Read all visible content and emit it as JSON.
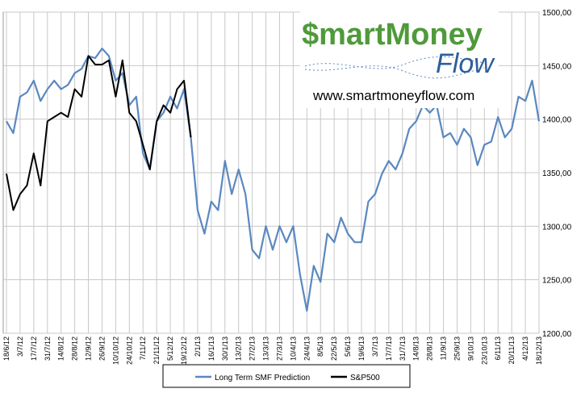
{
  "chart_data": {
    "type": "line",
    "annotations": [
      "$martMoney",
      "Flow",
      "www.smartmoneyflow.com"
    ],
    "categories": [
      "18/6/12",
      null,
      "3/7/12",
      null,
      "17/7/12",
      null,
      "31/7/12",
      null,
      "14/8/12",
      null,
      "28/8/12",
      null,
      "12/9/12",
      null,
      "26/9/12",
      null,
      "10/10/12",
      null,
      "24/10/12",
      null,
      "7/11/12",
      null,
      "21/11/12",
      null,
      "5/12/12",
      null,
      "19/12/12",
      null,
      "2/1/13",
      null,
      "16/1/13",
      null,
      "30/1/13",
      null,
      "13/2/13",
      null,
      "27/2/13",
      null,
      "13/3/13",
      null,
      "27/3/13",
      null,
      "10/4/13",
      null,
      "24/4/13",
      null,
      "8/5/13",
      null,
      "22/5/13",
      null,
      "5/6/13",
      null,
      "19/6/13",
      null,
      "3/7/13",
      null,
      "17/7/13",
      null,
      "31/7/13",
      null,
      "14/8/13",
      null,
      "28/8/13",
      null,
      "11/9/13",
      null,
      "25/9/13",
      null,
      "9/10/13",
      null,
      "23/10/13",
      null,
      "6/11/13",
      null,
      "20/11/13",
      null,
      "4/12/13",
      null,
      "18/12/13"
    ],
    "series": [
      {
        "name": "Long Term SMF Prediction",
        "color": "#5a88c0",
        "values": [
          1398,
          1387,
          1421,
          1425,
          1436,
          1417,
          1428,
          1436,
          1428,
          1432,
          1443,
          1447,
          1459,
          1457,
          1466,
          1459,
          1436,
          1443,
          1413,
          1421,
          1368,
          1353,
          1398,
          1406,
          1421,
          1410,
          1428,
          1383,
          1315,
          1293,
          1323,
          1315,
          1361,
          1330,
          1353,
          1330,
          1278,
          1270,
          1300,
          1278,
          1300,
          1285,
          1300,
          1255,
          1221,
          1263,
          1248,
          1293,
          1285,
          1308,
          1293,
          1285,
          1285,
          1323,
          1330,
          1349,
          1361,
          1353,
          1368,
          1391,
          1398,
          1413,
          1406,
          1413,
          1383,
          1387,
          1376,
          1391,
          1383,
          1357,
          1376,
          1379,
          1402,
          1383,
          1391,
          1421,
          1417,
          1436,
          1398
        ]
      },
      {
        "name": "S&P500",
        "color": "#000000",
        "values": [
          1349,
          1315,
          1330,
          1338,
          1368,
          1338,
          1398,
          1402,
          1406,
          1402,
          1428,
          1421,
          1459,
          1451,
          1451,
          1455,
          1421,
          1455,
          1406,
          1398,
          1376,
          1353,
          1398,
          1413,
          1406,
          1428,
          1436,
          1383,
          null,
          null,
          null,
          null,
          null,
          null,
          null,
          null,
          null,
          null,
          null,
          null,
          null,
          null,
          null,
          null,
          null,
          null,
          null,
          null,
          null,
          null,
          null,
          null,
          null,
          null,
          null,
          null,
          null,
          null,
          null,
          null,
          null,
          null,
          null,
          null,
          null,
          null,
          null,
          null,
          null,
          null,
          null,
          null,
          null,
          null,
          null,
          null,
          null,
          null,
          null
        ]
      }
    ],
    "ylim": [
      1200,
      1500
    ],
    "yticks": [
      {
        "value": 1200,
        "label": "1200,00"
      },
      {
        "value": 1250,
        "label": "1250,00"
      },
      {
        "value": 1300,
        "label": "1300,00"
      },
      {
        "value": 1350,
        "label": "1350,00"
      },
      {
        "value": 1400,
        "label": "1400,00"
      },
      {
        "value": 1450,
        "label": "1450,00"
      },
      {
        "value": 1500,
        "label": "1500,00"
      }
    ],
    "grid": true,
    "legend": "bottom"
  }
}
